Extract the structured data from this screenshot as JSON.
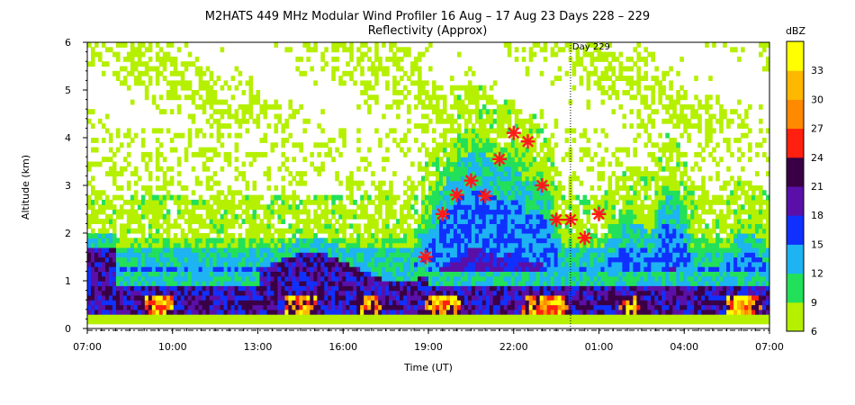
{
  "chart_data": {
    "type": "heatmap",
    "title": "M2HATS 449 MHz Modular Wind Profiler  16 Aug – 17 Aug 23 Days 228 – 229",
    "subtitle": "Reflectivity (Approx)",
    "xlabel": "Time (UT)",
    "ylabel": "Altitude (km)",
    "x_ticks": [
      "07:00",
      "10:00",
      "13:00",
      "16:00",
      "19:00",
      "22:00",
      "01:00",
      "04:00",
      "07:00"
    ],
    "x_range_hours": [
      0,
      24
    ],
    "ylim": [
      0,
      6
    ],
    "y_ticks": [
      "0",
      "1",
      "2",
      "3",
      "4",
      "5",
      "6"
    ],
    "day_marker": {
      "label": "Day 229",
      "x_hours": 17.0
    },
    "colorbar": {
      "unit": "dBZ",
      "tick_labels": [
        "6",
        "9",
        "12",
        "15",
        "18",
        "21",
        "24",
        "27",
        "30",
        "33"
      ],
      "bins": [
        {
          "from": 6,
          "to": 9,
          "color": "#b5f000"
        },
        {
          "from": 9,
          "to": 12,
          "color": "#22e05a"
        },
        {
          "from": 12,
          "to": 15,
          "color": "#1eb3f2"
        },
        {
          "from": 15,
          "to": 18,
          "color": "#1030ff"
        },
        {
          "from": 18,
          "to": 21,
          "color": "#5a10a8"
        },
        {
          "from": 21,
          "to": 24,
          "color": "#3a0045"
        },
        {
          "from": 24,
          "to": 27,
          "color": "#ff2010"
        },
        {
          "from": 27,
          "to": 30,
          "color": "#ff8a00"
        },
        {
          "from": 30,
          "to": 33,
          "color": "#ffb800"
        },
        {
          "from": 33,
          "to": 36,
          "color": "#ffff00"
        }
      ]
    },
    "markers": [
      {
        "x_hours": 11.9,
        "y_km": 1.5
      },
      {
        "x_hours": 12.5,
        "y_km": 2.4
      },
      {
        "x_hours": 13.0,
        "y_km": 2.8
      },
      {
        "x_hours": 13.5,
        "y_km": 3.1
      },
      {
        "x_hours": 14.0,
        "y_km": 2.78
      },
      {
        "x_hours": 14.5,
        "y_km": 3.55
      },
      {
        "x_hours": 15.0,
        "y_km": 4.1
      },
      {
        "x_hours": 15.5,
        "y_km": 3.92
      },
      {
        "x_hours": 16.0,
        "y_km": 3.0
      },
      {
        "x_hours": 16.5,
        "y_km": 2.28
      },
      {
        "x_hours": 17.0,
        "y_km": 2.28
      },
      {
        "x_hours": 17.5,
        "y_km": 1.9
      },
      {
        "x_hours": 18.0,
        "y_km": 2.4
      }
    ]
  }
}
